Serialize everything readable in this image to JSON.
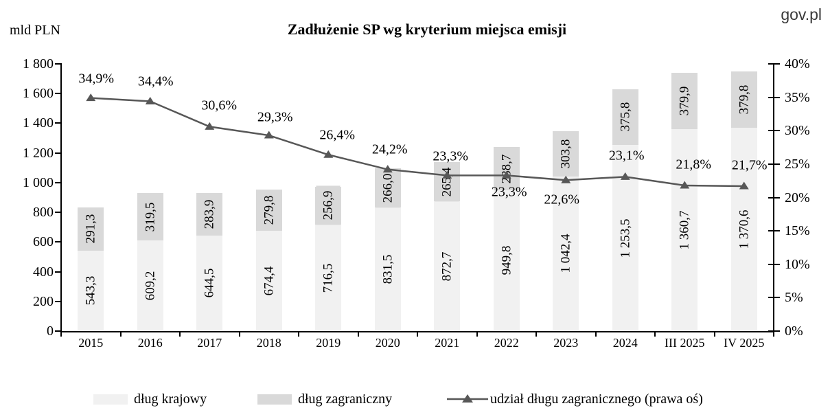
{
  "window": {
    "source": "gov.pl"
  },
  "chart_data": {
    "type": "bar",
    "subtype": "stacked-column-with-line-dual-axis",
    "title": "Zadłużenie SP wg kryterium miejsca emisji",
    "categories": [
      "2015",
      "2016",
      "2017",
      "2018",
      "2019",
      "2020",
      "2021",
      "2022",
      "2023",
      "2024",
      "III 2025",
      "IV 2025"
    ],
    "series": [
      {
        "name": "dług krajowy",
        "type": "bar",
        "axis": "left",
        "color": "#f1f1f1",
        "values": [
          543.3,
          609.2,
          644.5,
          674.4,
          716.5,
          831.5,
          872.7,
          949.8,
          1042.4,
          1253.5,
          1360.7,
          1370.6
        ],
        "labels": [
          "543,3",
          "609,2",
          "644,5",
          "674,4",
          "716,5",
          "831,5",
          "872,7",
          "949,8",
          "1 042,4",
          "1 253,5",
          "1 360,7",
          "1 370,6"
        ]
      },
      {
        "name": "dług zagraniczny",
        "type": "bar",
        "axis": "left",
        "color": "#d9d9d9",
        "values": [
          291.3,
          319.5,
          283.9,
          279.8,
          256.9,
          266.0,
          265.4,
          288.7,
          303.8,
          375.8,
          379.9,
          379.8
        ],
        "labels": [
          "291,3",
          "319,5",
          "283,9",
          "279,8",
          "256,9",
          "266,0",
          "265,4",
          "288,7",
          "303,8",
          "375,8",
          "379,9",
          "379,8"
        ]
      },
      {
        "name": "udział długu zagranicznego (prawa oś)",
        "type": "line",
        "axis": "right",
        "color": "#575757",
        "values": [
          34.9,
          34.4,
          30.6,
          29.3,
          26.4,
          24.2,
          23.3,
          23.3,
          22.6,
          23.1,
          21.8,
          21.7
        ],
        "labels": [
          "34,9%",
          "34,4%",
          "30,6%",
          "29,3%",
          "26,4%",
          "24,2%",
          "23,3%",
          "23,3%",
          "22,6%",
          "23,1%",
          "21,8%",
          "21,7%"
        ]
      }
    ],
    "left_axis": {
      "title": "mld PLN",
      "min": 0,
      "max": 1800,
      "step": 200,
      "tick_labels": [
        "0",
        "200",
        "400",
        "600",
        "800",
        "1 000",
        "1 200",
        "1 400",
        "1 600",
        "1 800"
      ]
    },
    "right_axis": {
      "min": 0,
      "max": 40,
      "step": 5,
      "tick_labels": [
        "0%",
        "5%",
        "10%",
        "15%",
        "20%",
        "25%",
        "30%",
        "35%",
        "40%"
      ]
    },
    "legend": [
      "dług krajowy",
      "dług zagraniczny",
      "udział długu zagranicznego (prawa oś)"
    ],
    "legend_position": "bottom",
    "grid": false
  }
}
